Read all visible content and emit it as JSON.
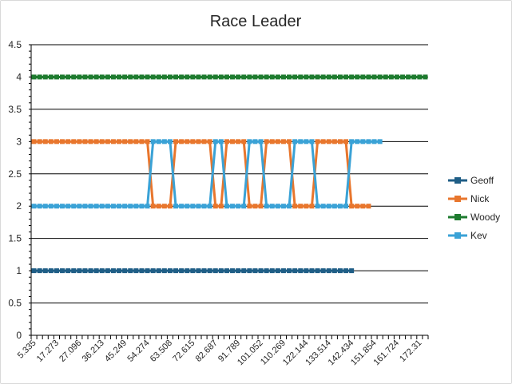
{
  "chart_data": {
    "type": "line",
    "title": "Race Leader",
    "ylim": [
      0,
      4.5
    ],
    "yticks": [
      "0",
      "0.5",
      "1",
      "1.5",
      "2",
      "2.5",
      "3",
      "3.5",
      "4",
      "4.5"
    ],
    "x_tick_labels": [
      "5.335",
      "17.273",
      "27.096",
      "36.213",
      "45.249",
      "54.274",
      "63.508",
      "72.615",
      "82.687",
      "91.789",
      "101.052",
      "110.269",
      "122.144",
      "133.514",
      "142.434",
      "151.854",
      "161.724",
      "172.31"
    ],
    "grid": "horizontal",
    "legend": "right",
    "series": [
      {
        "name": "Geoff",
        "color": "#1f5e86",
        "values": [
          1,
          1,
          1,
          1,
          1,
          1,
          1,
          1,
          1,
          1,
          1,
          1,
          1,
          1,
          1,
          1,
          1,
          1,
          1,
          1,
          1,
          1,
          1,
          1,
          1,
          1,
          1,
          1,
          1,
          1,
          1,
          1,
          1,
          1,
          1,
          1,
          1,
          1,
          1,
          1,
          1,
          1,
          1,
          1,
          1,
          1,
          1,
          1,
          1,
          1,
          1,
          1,
          1,
          1,
          1,
          1,
          1
        ]
      },
      {
        "name": "Nick",
        "color": "#e8762d",
        "values": [
          3,
          3,
          3,
          3,
          3,
          3,
          3,
          3,
          3,
          3,
          3,
          3,
          3,
          3,
          3,
          3,
          3,
          3,
          3,
          3,
          3,
          2,
          2,
          2,
          2,
          3,
          3,
          3,
          3,
          3,
          3,
          3,
          2,
          2,
          3,
          3,
          3,
          3,
          2,
          2,
          2,
          3,
          3,
          3,
          3,
          3,
          2,
          2,
          2,
          2,
          3,
          3,
          3,
          3,
          3,
          3,
          2,
          2,
          2,
          2
        ]
      },
      {
        "name": "Woody",
        "color": "#1e7b2f",
        "values": [
          4,
          4,
          4,
          4,
          4,
          4,
          4,
          4,
          4,
          4,
          4,
          4,
          4,
          4,
          4,
          4,
          4,
          4,
          4,
          4,
          4,
          4,
          4,
          4,
          4,
          4,
          4,
          4,
          4,
          4,
          4,
          4,
          4,
          4,
          4,
          4,
          4,
          4,
          4,
          4,
          4,
          4,
          4,
          4,
          4,
          4,
          4,
          4,
          4,
          4,
          4,
          4,
          4,
          4,
          4,
          4,
          4,
          4,
          4,
          4,
          4,
          4,
          4,
          4,
          4,
          4,
          4,
          4,
          4,
          4
        ]
      },
      {
        "name": "Kev",
        "color": "#3aa2d6",
        "values": [
          2,
          2,
          2,
          2,
          2,
          2,
          2,
          2,
          2,
          2,
          2,
          2,
          2,
          2,
          2,
          2,
          2,
          2,
          2,
          2,
          2,
          3,
          3,
          3,
          3,
          2,
          2,
          2,
          2,
          2,
          2,
          2,
          3,
          3,
          2,
          2,
          2,
          2,
          3,
          3,
          3,
          2,
          2,
          2,
          2,
          2,
          3,
          3,
          3,
          3,
          2,
          2,
          2,
          2,
          2,
          2,
          3,
          3,
          3,
          3,
          3,
          3
        ]
      }
    ]
  }
}
